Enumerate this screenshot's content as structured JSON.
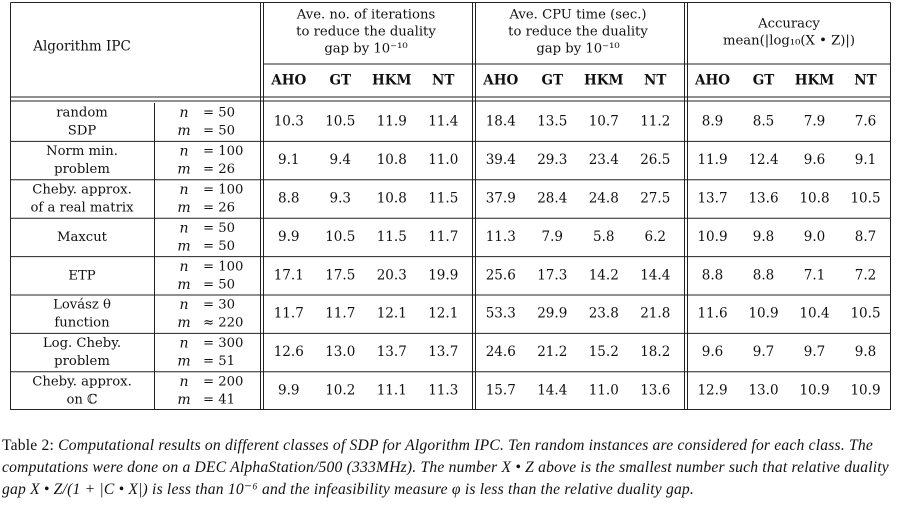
{
  "table": {
    "corner_header": "Algorithm IPC",
    "groups": [
      {
        "lines": [
          "Ave. no. of iterations",
          "to reduce the duality",
          "gap by 10⁻¹⁰"
        ]
      },
      {
        "lines": [
          "Ave. CPU time (sec.)",
          "to reduce the duality",
          "gap by 10⁻¹⁰"
        ]
      },
      {
        "lines": [
          "Accuracy",
          "mean(|log₁₀(X • Z)|)"
        ]
      }
    ],
    "subheaders": [
      "AHO",
      "GT",
      "HKM",
      "NT"
    ],
    "rows": [
      {
        "name": [
          "random",
          "SDP"
        ],
        "params": [
          [
            "n",
            "= 50"
          ],
          [
            "m",
            "= 50"
          ]
        ],
        "values": [
          "10.3",
          "10.5",
          "11.9",
          "11.4",
          "18.4",
          "13.5",
          "10.7",
          "11.2",
          "8.9",
          "8.5",
          "7.9",
          "7.6"
        ]
      },
      {
        "name": [
          "Norm min.",
          "problem"
        ],
        "params": [
          [
            "n",
            "= 100"
          ],
          [
            "m",
            "= 26"
          ]
        ],
        "values": [
          "9.1",
          "9.4",
          "10.8",
          "11.0",
          "39.4",
          "29.3",
          "23.4",
          "26.5",
          "11.9",
          "12.4",
          "9.6",
          "9.1"
        ]
      },
      {
        "name": [
          "Cheby. approx.",
          "of a real matrix"
        ],
        "params": [
          [
            "n",
            "= 100"
          ],
          [
            "m",
            "= 26"
          ]
        ],
        "values": [
          "8.8",
          "9.3",
          "10.8",
          "11.5",
          "37.9",
          "28.4",
          "24.8",
          "27.5",
          "13.7",
          "13.6",
          "10.8",
          "10.5"
        ]
      },
      {
        "name": [
          "Maxcut"
        ],
        "params": [
          [
            "n",
            "= 50"
          ],
          [
            "m",
            "= 50"
          ]
        ],
        "values": [
          "9.9",
          "10.5",
          "11.5",
          "11.7",
          "11.3",
          "7.9",
          "5.8",
          "6.2",
          "10.9",
          "9.8",
          "9.0",
          "8.7"
        ]
      },
      {
        "name": [
          "ETP"
        ],
        "params": [
          [
            "n",
            "= 100"
          ],
          [
            "m",
            "= 50"
          ]
        ],
        "values": [
          "17.1",
          "17.5",
          "20.3",
          "19.9",
          "25.6",
          "17.3",
          "14.2",
          "14.4",
          "8.8",
          "8.8",
          "7.1",
          "7.2"
        ]
      },
      {
        "name": [
          "Lovász θ",
          "function"
        ],
        "params": [
          [
            "n",
            "= 30"
          ],
          [
            "m",
            "≈ 220"
          ]
        ],
        "values": [
          "11.7",
          "11.7",
          "12.1",
          "12.1",
          "53.3",
          "29.9",
          "23.8",
          "21.8",
          "11.6",
          "10.9",
          "10.4",
          "10.5"
        ]
      },
      {
        "name": [
          "Log. Cheby.",
          "problem"
        ],
        "params": [
          [
            "n",
            "= 300"
          ],
          [
            "m",
            "= 51"
          ]
        ],
        "values": [
          "12.6",
          "13.0",
          "13.7",
          "13.7",
          "24.6",
          "21.2",
          "15.2",
          "18.2",
          "9.6",
          "9.7",
          "9.7",
          "9.8"
        ]
      },
      {
        "name": [
          "Cheby. approx.",
          "on ℂ"
        ],
        "params": [
          [
            "n",
            "= 200"
          ],
          [
            "m",
            "= 41"
          ]
        ],
        "values": [
          "9.9",
          "10.2",
          "11.1",
          "11.3",
          "15.7",
          "14.4",
          "11.0",
          "13.6",
          "12.9",
          "13.0",
          "10.9",
          "10.9"
        ]
      }
    ]
  },
  "caption": {
    "label": "Table 2:",
    "text": "Computational results on different classes of SDP for Algorithm IPC. Ten random instances are considered for each class. The computations were done on a DEC AlphaStation/500 (333MHz). The number X • Z above is the smallest number such that relative duality gap X • Z/(1 + |C • X|) is less than 10⁻⁶ and the infeasibility measure φ is less than the relative duality gap."
  }
}
